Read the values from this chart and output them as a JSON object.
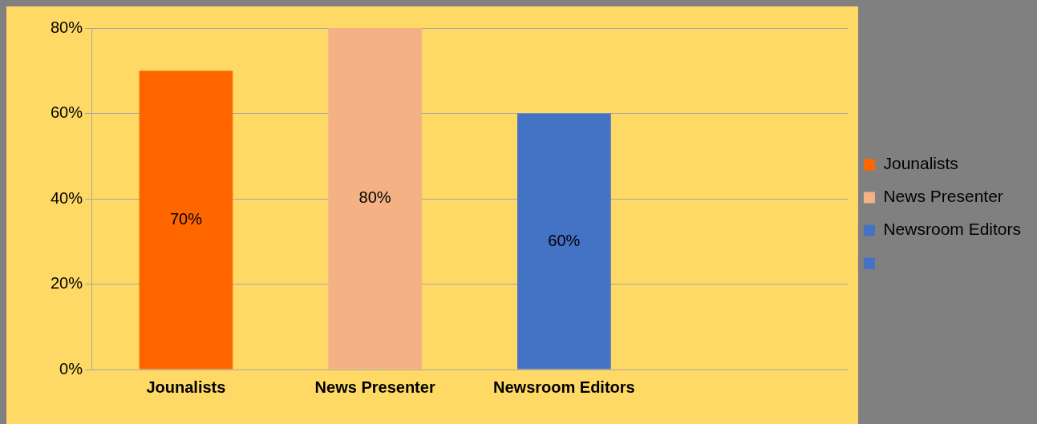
{
  "chart_data": {
    "type": "bar",
    "categories": [
      "Jounalists",
      "News Presenter",
      "Newsroom Editors",
      null
    ],
    "series": [
      {
        "name": "Jounalists",
        "color": "#ff6600",
        "values": [
          70,
          null,
          null,
          null
        ],
        "value_labels": [
          "70%",
          null,
          null,
          null
        ]
      },
      {
        "name": "News Presenter",
        "color": "#f4b183",
        "values": [
          null,
          80,
          null,
          null
        ],
        "value_labels": [
          null,
          "80%",
          null,
          null
        ]
      },
      {
        "name": "Newsroom Editors",
        "color": "#4472c4",
        "values": [
          null,
          null,
          60,
          null
        ],
        "value_labels": [
          null,
          null,
          "60%",
          null
        ]
      },
      {
        "color": "#4472c4",
        "values": [
          null,
          null,
          null,
          null
        ]
      }
    ],
    "ylim": [
      0,
      80
    ],
    "yticks": [
      {
        "value": 0,
        "label": "0%"
      },
      {
        "value": 20,
        "label": "20%"
      },
      {
        "value": 40,
        "label": "40%"
      },
      {
        "value": 60,
        "label": "60%"
      },
      {
        "value": 80,
        "label": "80%"
      }
    ],
    "grid": "y",
    "legend": "right"
  }
}
